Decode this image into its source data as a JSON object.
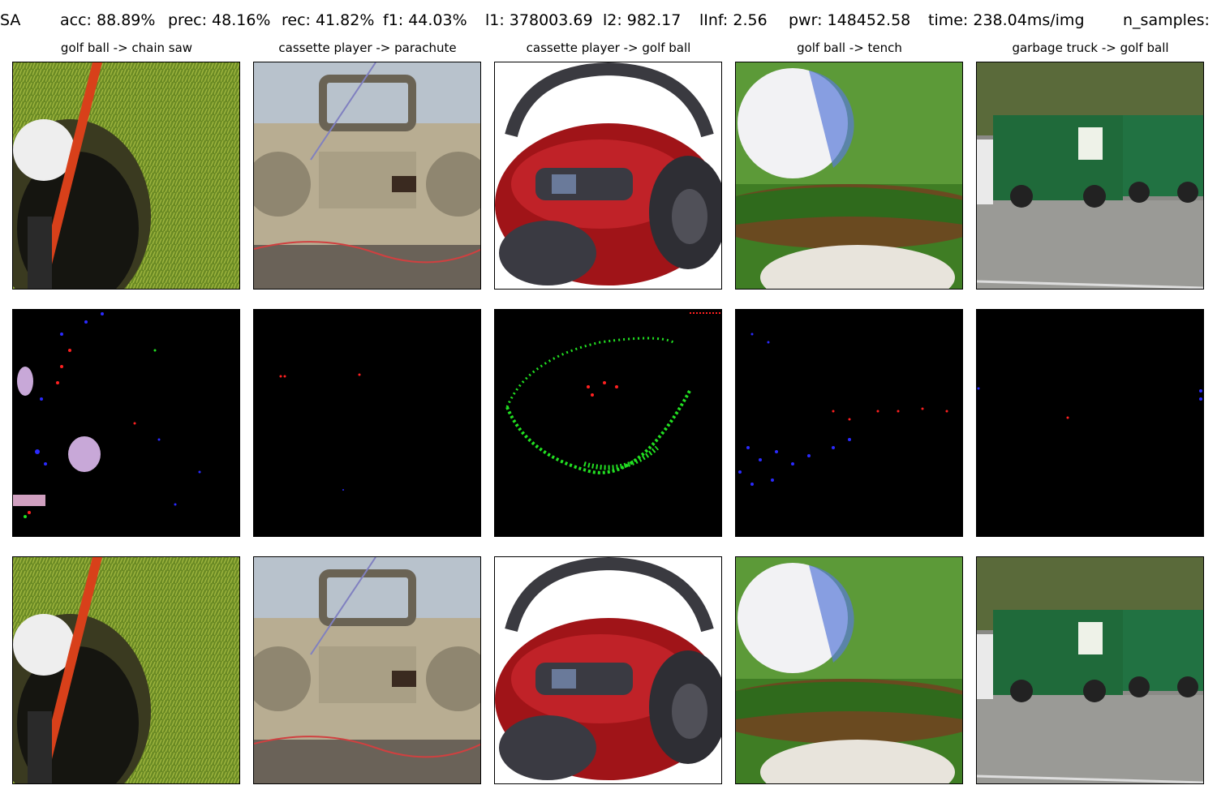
{
  "header": {
    "method": "SA",
    "acc": "acc: 88.89%",
    "prec": "prec: 48.16%",
    "rec": "rec: 41.82%",
    "f1": "f1: 44.03%",
    "l1": "l1: 378003.69",
    "l2": "l2: 982.17",
    "linf": "lInf: 2.56",
    "pwr": "pwr: 148452.58",
    "time": "time: 238.04ms/img",
    "n_samples": "n_samples:"
  },
  "columns": [
    {
      "title": "golf ball -> chain saw"
    },
    {
      "title": "cassette player -> parachute"
    },
    {
      "title": "cassette player -> golf ball"
    },
    {
      "title": "golf ball -> tench"
    },
    {
      "title": "garbage truck -> golf ball"
    }
  ],
  "rows": [
    "original-image",
    "perturbation",
    "adversarial-image"
  ],
  "colors": {
    "grass": "#6f8f2a",
    "perturbation_bg": "#000000",
    "perturb_red": "#ff2020",
    "perturb_blue": "#2a2aff",
    "perturb_green": "#22e022"
  }
}
